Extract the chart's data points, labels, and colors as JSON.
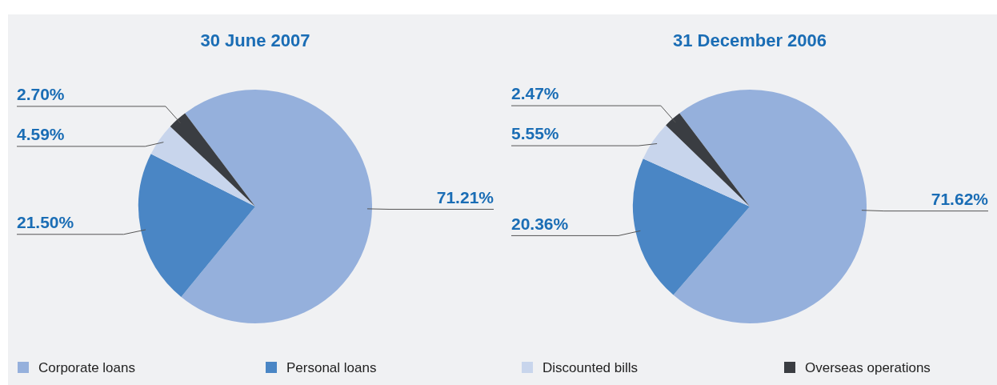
{
  "chart_data": [
    {
      "type": "pie",
      "title": "30 June 2007",
      "categories": [
        "Corporate loans",
        "Personal loans",
        "Discounted bills",
        "Overseas operations"
      ],
      "values": [
        71.21,
        21.5,
        4.59,
        2.7
      ],
      "colors": [
        "#95b0dc",
        "#4a86c5",
        "#c8d5ec",
        "#3a3d42"
      ],
      "value_labels": [
        "71.21%",
        "21.50%",
        "4.59%",
        "2.70%"
      ],
      "legend": "bottom"
    },
    {
      "type": "pie",
      "title": "31 December 2006",
      "categories": [
        null,
        null,
        null,
        null
      ],
      "values": [
        71.62,
        20.36,
        5.55,
        2.47
      ],
      "colors": [
        "#95b0dc",
        "#4a86c5",
        "#c8d5ec",
        "#3a3d42"
      ],
      "value_labels": [
        "71.62%",
        "20.36%",
        "5.55%",
        "2.47%"
      ]
    }
  ]
}
